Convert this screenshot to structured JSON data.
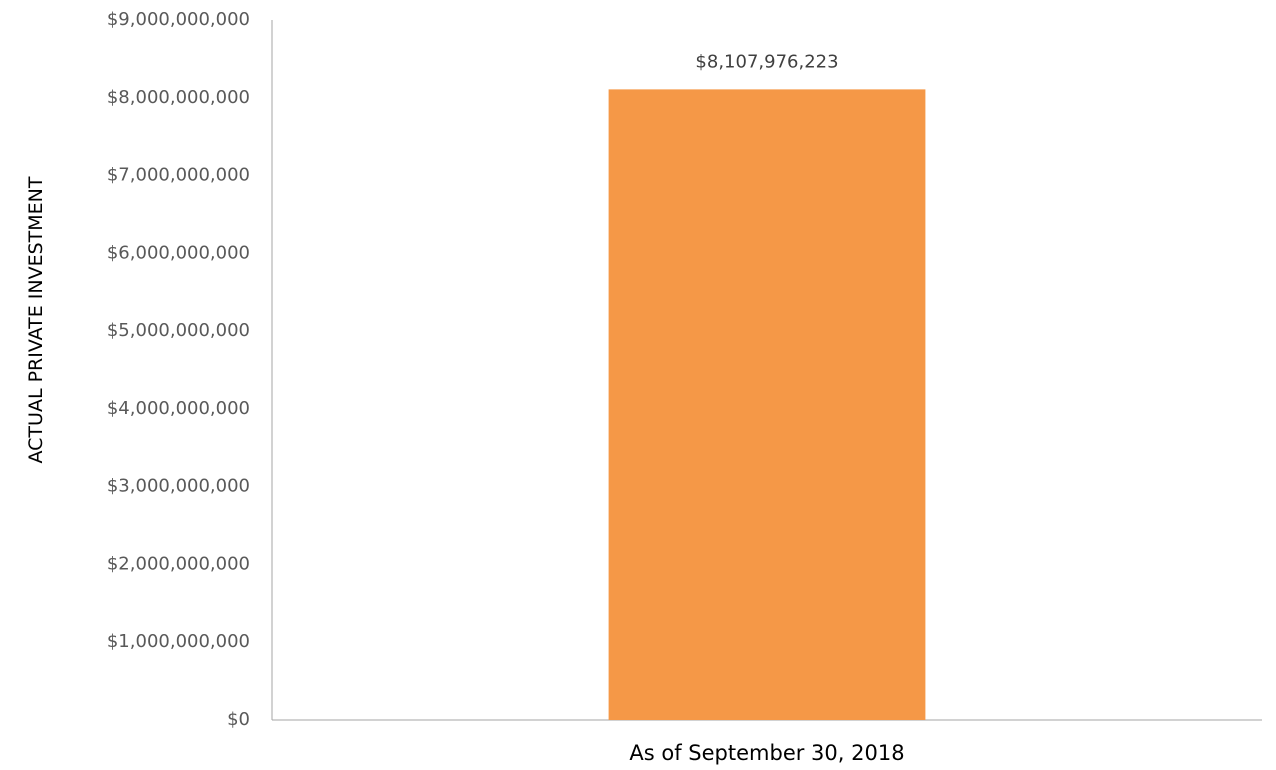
{
  "chart_data": {
    "type": "bar",
    "title": "",
    "xlabel": "",
    "ylabel": "ACTUAL PRIVATE INVESTMENT",
    "categories": [
      "As of September 30, 2018"
    ],
    "values": [
      8107976223
    ],
    "data_labels": [
      "$8,107,976,223"
    ],
    "ylim": [
      0,
      9000000000
    ],
    "yticks": [
      0,
      1000000000,
      2000000000,
      3000000000,
      4000000000,
      5000000000,
      6000000000,
      7000000000,
      8000000000,
      9000000000
    ],
    "ytick_labels": [
      "$0",
      "$1,000,000,000",
      "$2,000,000,000",
      "$3,000,000,000",
      "$4,000,000,000",
      "$5,000,000,000",
      "$6,000,000,000",
      "$7,000,000,000",
      "$8,000,000,000",
      "$9,000,000,000"
    ],
    "grid": false,
    "legend": "none",
    "colors": {
      "bar": "#F59847",
      "axis": "#A6A6A6"
    }
  }
}
